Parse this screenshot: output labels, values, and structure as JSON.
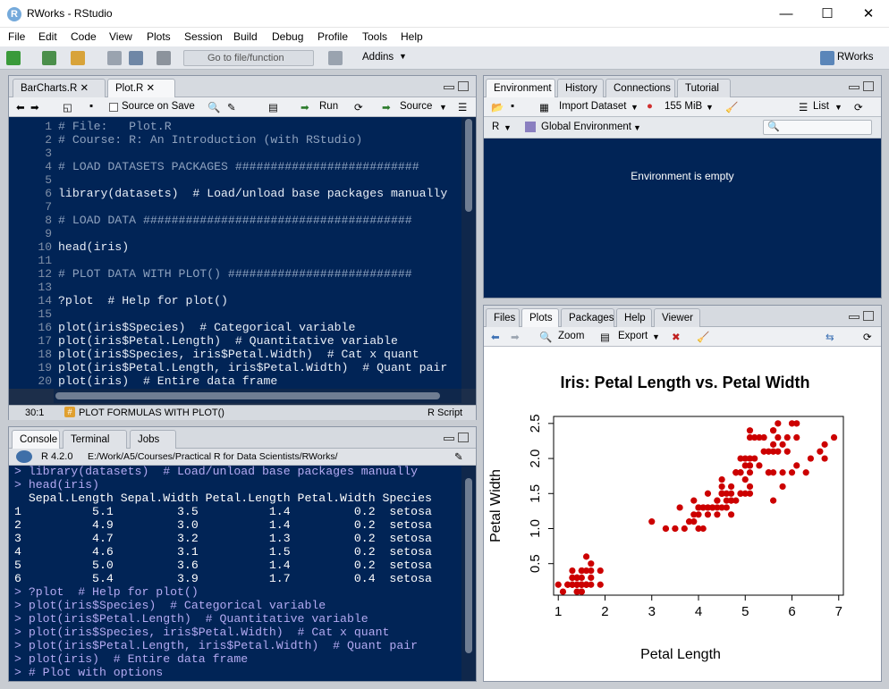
{
  "window": {
    "title": "RWorks - RStudio",
    "logo": "R",
    "minimize": "—",
    "maximize": "☐",
    "close": "✕"
  },
  "menu": [
    "File",
    "Edit",
    "Code",
    "View",
    "Plots",
    "Session",
    "Build",
    "Debug",
    "Profile",
    "Tools",
    "Help"
  ],
  "toolbar": {
    "goto_placeholder": "Go to file/function",
    "addins": "Addins",
    "project": "RWorks"
  },
  "editor": {
    "tabs": [
      "BarCharts.R",
      "Plot.R"
    ],
    "source_on_save": "Source on Save",
    "run": "Run",
    "source": "Source",
    "lines": [
      {
        "n": "1",
        "t": "# File:   Plot.R",
        "c": "cmt"
      },
      {
        "n": "2",
        "t": "# Course: R: An Introduction (with RStudio)",
        "c": "cmt"
      },
      {
        "n": "3",
        "t": "",
        "c": "cmt"
      },
      {
        "n": "4",
        "t": "# LOAD DATASETS PACKAGES ##########################",
        "c": "cmt"
      },
      {
        "n": "5",
        "t": "",
        "c": "cmt"
      },
      {
        "n": "6",
        "t": "library(datasets)  # Load/unload base packages manually",
        "c": "fn"
      },
      {
        "n": "7",
        "t": "",
        "c": "cmt"
      },
      {
        "n": "8",
        "t": "# LOAD DATA ######################################",
        "c": "cmt"
      },
      {
        "n": "9",
        "t": "",
        "c": "cmt"
      },
      {
        "n": "10",
        "t": "head(iris)",
        "c": "fn"
      },
      {
        "n": "11",
        "t": "",
        "c": "cmt"
      },
      {
        "n": "12",
        "t": "# PLOT DATA WITH PLOT() ##########################",
        "c": "cmt"
      },
      {
        "n": "13",
        "t": "",
        "c": "cmt"
      },
      {
        "n": "14",
        "t": "?plot  # Help for plot()",
        "c": "fn"
      },
      {
        "n": "15",
        "t": "",
        "c": "cmt"
      },
      {
        "n": "16",
        "t": "plot(iris$Species)  # Categorical variable",
        "c": "fn"
      },
      {
        "n": "17",
        "t": "plot(iris$Petal.Length)  # Quantitative variable",
        "c": "fn"
      },
      {
        "n": "18",
        "t": "plot(iris$Species, iris$Petal.Width)  # Cat x quant",
        "c": "fn"
      },
      {
        "n": "19",
        "t": "plot(iris$Petal.Length, iris$Petal.Width)  # Quant pair",
        "c": "fn"
      },
      {
        "n": "20",
        "t": "plot(iris)  # Entire data frame",
        "c": "fn"
      },
      {
        "n": "21",
        "t": "",
        "c": "cmt"
      },
      {
        "n": "22",
        "t": "",
        "c": "cmt"
      }
    ],
    "status_pos": "30:1",
    "status_section": "PLOT FORMULAS WITH PLOT()",
    "status_type": "R Script"
  },
  "console": {
    "tabs": [
      "Console",
      "Terminal",
      "Jobs"
    ],
    "version": "R 4.2.0",
    "path": "E:/Work/A5/Courses/Practical R for Data Scientists/RWorks/",
    "lines": [
      {
        "t": "> library(datasets)  # Load/unload base packages manually",
        "c": "con-in"
      },
      {
        "t": "> head(iris)",
        "c": "con-in"
      },
      {
        "t": "  Sepal.Length Sepal.Width Petal.Length Petal.Width Species",
        "c": "con-out"
      },
      {
        "t": "1          5.1         3.5          1.4         0.2  setosa",
        "c": "con-out"
      },
      {
        "t": "2          4.9         3.0          1.4         0.2  setosa",
        "c": "con-out"
      },
      {
        "t": "3          4.7         3.2          1.3         0.2  setosa",
        "c": "con-out"
      },
      {
        "t": "4          4.6         3.1          1.5         0.2  setosa",
        "c": "con-out"
      },
      {
        "t": "5          5.0         3.6          1.4         0.2  setosa",
        "c": "con-out"
      },
      {
        "t": "6          5.4         3.9          1.7         0.4  setosa",
        "c": "con-out"
      },
      {
        "t": "> ?plot  # Help for plot()",
        "c": "con-in"
      },
      {
        "t": "> plot(iris$Species)  # Categorical variable",
        "c": "con-in"
      },
      {
        "t": "> plot(iris$Petal.Length)  # Quantitative variable",
        "c": "con-in"
      },
      {
        "t": "> plot(iris$Species, iris$Petal.Width)  # Cat x quant",
        "c": "con-in"
      },
      {
        "t": "> plot(iris$Petal.Length, iris$Petal.Width)  # Quant pair",
        "c": "con-in"
      },
      {
        "t": "> plot(iris)  # Entire data frame",
        "c": "con-in"
      },
      {
        "t": "> # Plot with options",
        "c": "con-in"
      }
    ]
  },
  "environment": {
    "tabs": [
      "Environment",
      "History",
      "Connections",
      "Tutorial"
    ],
    "import": "Import Dataset",
    "memory": "155 MiB",
    "view": "List",
    "lang": "R",
    "scope": "Global Environment",
    "empty": "Environment is empty"
  },
  "files": {
    "tabs": [
      "Files",
      "Plots",
      "Packages",
      "Help",
      "Viewer"
    ],
    "zoom": "Zoom",
    "export": "Export"
  },
  "chart_data": {
    "type": "scatter",
    "title": "Iris: Petal Length vs. Petal Width",
    "xlabel": "Petal Length",
    "ylabel": "Petal Width",
    "xlim": [
      0.9,
      7.1
    ],
    "ylim": [
      0.05,
      2.6
    ],
    "xticks": [
      1,
      2,
      3,
      4,
      5,
      6,
      7
    ],
    "yticks": [
      0.5,
      1.0,
      1.5,
      2.0,
      2.5
    ],
    "color": "#cc0000",
    "points": [
      [
        1.4,
        0.2
      ],
      [
        1.4,
        0.2
      ],
      [
        1.3,
        0.2
      ],
      [
        1.5,
        0.2
      ],
      [
        1.4,
        0.2
      ],
      [
        1.7,
        0.4
      ],
      [
        1.4,
        0.3
      ],
      [
        1.5,
        0.2
      ],
      [
        1.4,
        0.2
      ],
      [
        1.5,
        0.1
      ],
      [
        1.5,
        0.2
      ],
      [
        1.6,
        0.2
      ],
      [
        1.4,
        0.1
      ],
      [
        1.1,
        0.1
      ],
      [
        1.2,
        0.2
      ],
      [
        1.5,
        0.4
      ],
      [
        1.3,
        0.4
      ],
      [
        1.4,
        0.3
      ],
      [
        1.7,
        0.3
      ],
      [
        1.5,
        0.3
      ],
      [
        1.7,
        0.2
      ],
      [
        1.5,
        0.4
      ],
      [
        1.0,
        0.2
      ],
      [
        1.7,
        0.5
      ],
      [
        1.9,
        0.2
      ],
      [
        1.6,
        0.2
      ],
      [
        1.6,
        0.4
      ],
      [
        1.5,
        0.2
      ],
      [
        1.4,
        0.2
      ],
      [
        1.6,
        0.2
      ],
      [
        1.6,
        0.2
      ],
      [
        1.5,
        0.4
      ],
      [
        1.5,
        0.1
      ],
      [
        1.4,
        0.2
      ],
      [
        1.5,
        0.2
      ],
      [
        1.2,
        0.2
      ],
      [
        1.3,
        0.2
      ],
      [
        1.4,
        0.1
      ],
      [
        1.3,
        0.2
      ],
      [
        1.5,
        0.2
      ],
      [
        1.3,
        0.3
      ],
      [
        1.3,
        0.3
      ],
      [
        1.3,
        0.2
      ],
      [
        1.6,
        0.6
      ],
      [
        1.9,
        0.4
      ],
      [
        1.4,
        0.3
      ],
      [
        1.6,
        0.2
      ],
      [
        1.4,
        0.2
      ],
      [
        1.5,
        0.2
      ],
      [
        1.4,
        0.2
      ],
      [
        4.7,
        1.4
      ],
      [
        4.5,
        1.5
      ],
      [
        4.9,
        1.5
      ],
      [
        4.0,
        1.3
      ],
      [
        4.6,
        1.5
      ],
      [
        4.5,
        1.3
      ],
      [
        4.7,
        1.6
      ],
      [
        3.3,
        1.0
      ],
      [
        4.6,
        1.3
      ],
      [
        3.9,
        1.4
      ],
      [
        3.5,
        1.0
      ],
      [
        4.2,
        1.5
      ],
      [
        4.0,
        1.0
      ],
      [
        4.7,
        1.4
      ],
      [
        3.6,
        1.3
      ],
      [
        4.4,
        1.4
      ],
      [
        4.5,
        1.5
      ],
      [
        4.1,
        1.0
      ],
      [
        4.5,
        1.5
      ],
      [
        3.9,
        1.1
      ],
      [
        4.8,
        1.8
      ],
      [
        4.0,
        1.3
      ],
      [
        4.9,
        1.5
      ],
      [
        4.7,
        1.2
      ],
      [
        4.3,
        1.3
      ],
      [
        4.4,
        1.4
      ],
      [
        4.8,
        1.4
      ],
      [
        5.0,
        1.7
      ],
      [
        4.5,
        1.5
      ],
      [
        3.5,
        1.0
      ],
      [
        3.8,
        1.1
      ],
      [
        3.7,
        1.0
      ],
      [
        3.9,
        1.2
      ],
      [
        5.1,
        1.6
      ],
      [
        4.5,
        1.5
      ],
      [
        4.5,
        1.6
      ],
      [
        4.7,
        1.5
      ],
      [
        4.4,
        1.3
      ],
      [
        4.1,
        1.3
      ],
      [
        4.0,
        1.3
      ],
      [
        4.4,
        1.2
      ],
      [
        4.6,
        1.4
      ],
      [
        4.0,
        1.2
      ],
      [
        3.3,
        1.0
      ],
      [
        4.2,
        1.3
      ],
      [
        4.2,
        1.2
      ],
      [
        4.2,
        1.3
      ],
      [
        4.3,
        1.3
      ],
      [
        3.0,
        1.1
      ],
      [
        4.1,
        1.3
      ],
      [
        6.0,
        2.5
      ],
      [
        5.1,
        1.9
      ],
      [
        5.9,
        2.1
      ],
      [
        5.6,
        1.8
      ],
      [
        5.8,
        2.2
      ],
      [
        6.6,
        2.1
      ],
      [
        4.5,
        1.7
      ],
      [
        6.3,
        1.8
      ],
      [
        5.8,
        1.8
      ],
      [
        6.1,
        2.5
      ],
      [
        5.1,
        2.0
      ],
      [
        5.3,
        1.9
      ],
      [
        5.5,
        2.1
      ],
      [
        5.0,
        2.0
      ],
      [
        5.1,
        2.4
      ],
      [
        5.3,
        2.3
      ],
      [
        5.5,
        1.8
      ],
      [
        6.7,
        2.2
      ],
      [
        6.9,
        2.3
      ],
      [
        5.0,
        1.5
      ],
      [
        5.7,
        2.3
      ],
      [
        4.9,
        2.0
      ],
      [
        6.7,
        2.0
      ],
      [
        4.9,
        1.8
      ],
      [
        5.7,
        2.1
      ],
      [
        6.0,
        1.8
      ],
      [
        4.8,
        1.8
      ],
      [
        4.9,
        1.8
      ],
      [
        5.6,
        2.1
      ],
      [
        5.8,
        1.6
      ],
      [
        6.1,
        1.9
      ],
      [
        6.4,
        2.0
      ],
      [
        5.6,
        2.2
      ],
      [
        5.1,
        1.5
      ],
      [
        5.6,
        1.4
      ],
      [
        6.1,
        2.3
      ],
      [
        5.6,
        2.4
      ],
      [
        5.5,
        1.8
      ],
      [
        4.8,
        1.8
      ],
      [
        5.4,
        2.1
      ],
      [
        5.6,
        2.4
      ],
      [
        5.1,
        2.3
      ],
      [
        5.1,
        1.9
      ],
      [
        5.9,
        2.3
      ],
      [
        5.7,
        2.5
      ],
      [
        5.2,
        2.3
      ],
      [
        5.0,
        1.9
      ],
      [
        5.2,
        2.0
      ],
      [
        5.4,
        2.3
      ],
      [
        5.1,
        1.8
      ]
    ]
  }
}
